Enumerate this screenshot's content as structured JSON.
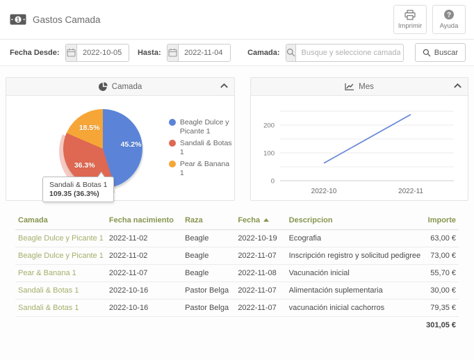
{
  "header": {
    "title": "Gastos Camada",
    "icon": "money-bill-icon",
    "actions": [
      {
        "label": "Imprimir",
        "icon": "printer-icon"
      },
      {
        "label": "Ayuda",
        "icon": "question-circle-icon"
      }
    ]
  },
  "filters": {
    "fecha_desde_label": "Fecha Desde:",
    "fecha_desde_value": "2022-10-05",
    "hasta_label": "Hasta:",
    "hasta_value": "2022-11-04",
    "camada_label": "Camada:",
    "camada_placeholder": "Busque y seleccione camada",
    "buscar_label": "Buscar"
  },
  "panels": {
    "camada_title": "Camada",
    "mes_title": "Mes"
  },
  "chart_data": [
    {
      "type": "pie",
      "title": "Camada",
      "labels": [
        "Beagle Dulce y Picante 1",
        "Sandali & Botas 1",
        "Pear & Banana 1"
      ],
      "values": [
        136.0,
        109.35,
        55.7
      ],
      "percent_labels": [
        "45.2%",
        "36.3%",
        "18.5%"
      ],
      "colors": [
        "#5b84d9",
        "#de6851",
        "#f6a637"
      ],
      "highlight_color": "rgba(222,104,81,0.35)",
      "highlighted_slice": 1,
      "legend_position": "right",
      "tooltip": {
        "line1": "Sandali & Botas 1",
        "line2": "109.35 (36.3%)"
      }
    },
    {
      "type": "line",
      "title": "Mes",
      "x": [
        "2022-10",
        "2022-11"
      ],
      "values": [
        63.0,
        238.05
      ],
      "yticks": [
        0,
        100,
        200
      ],
      "grid_values": [
        0,
        50,
        100,
        150,
        200,
        250
      ],
      "ylim": [
        0,
        250
      ],
      "line_color": "#6687d8",
      "grid": true,
      "legend_position": "none"
    }
  ],
  "table": {
    "columns": {
      "camada": "Camada",
      "fecha_nacimiento": "Fecha nacimiento",
      "raza": "Raza",
      "fecha": "Fecha",
      "descripcion": "Descripcion",
      "importe": "Importe"
    },
    "sort": {
      "column": "Fecha",
      "direction": "asc"
    },
    "rows": [
      {
        "camada": "Beagle Dulce y Picante 1",
        "fecha_nacimiento": "2022-11-02",
        "raza": "Beagle",
        "fecha": "2022-10-19",
        "descripcion": "Ecografia",
        "importe": "63,00 €"
      },
      {
        "camada": "Beagle Dulce y Picante 1",
        "fecha_nacimiento": "2022-11-02",
        "raza": "Beagle",
        "fecha": "2022-11-07",
        "descripcion": "Inscripción registro y solicitud pedigree",
        "importe": "73,00 €"
      },
      {
        "camada": "Pear & Banana 1",
        "fecha_nacimiento": "2022-11-07",
        "raza": "Beagle",
        "fecha": "2022-11-08",
        "descripcion": "Vacunación inicial",
        "importe": "55,70 €"
      },
      {
        "camada": "Sandali & Botas 1",
        "fecha_nacimiento": "2022-10-16",
        "raza": "Pastor Belga",
        "fecha": "2022-11-07",
        "descripcion": "Alimentación suplementaria",
        "importe": "30,00 €"
      },
      {
        "camada": "Sandali & Botas 1",
        "fecha_nacimiento": "2022-10-16",
        "raza": "Pastor Belga",
        "fecha": "2022-11-07",
        "descripcion": "vacunación inicial cachorros",
        "importe": "79,35 €"
      }
    ],
    "total": "301,05 €"
  }
}
